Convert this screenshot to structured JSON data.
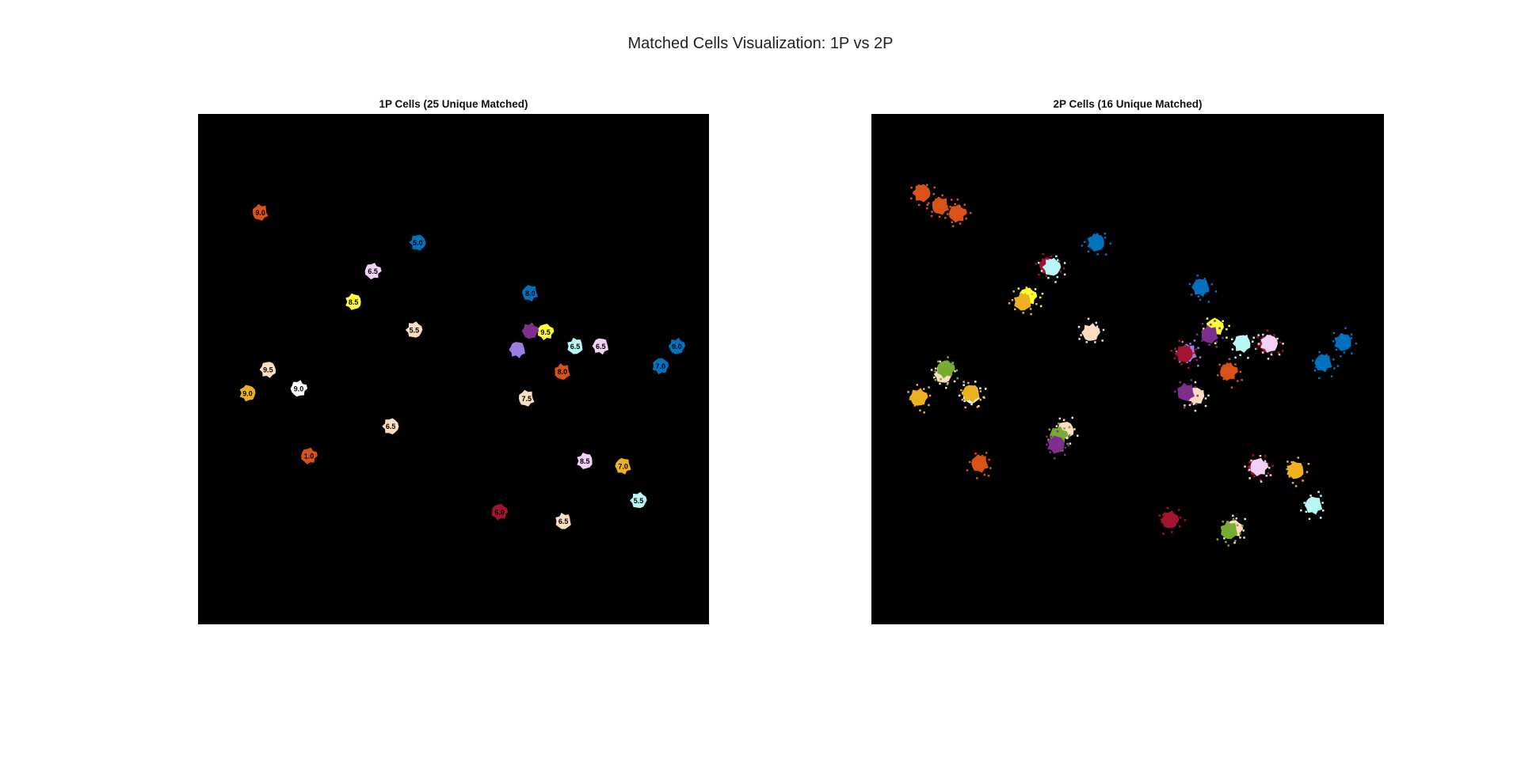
{
  "figure": {
    "title": "Matched Cells Visualization: 1P vs 2P"
  },
  "chart_data": [
    {
      "type": "scatter",
      "title": "1P Cells (25 Unique Matched)",
      "xlim": [
        0,
        1
      ],
      "ylim": [
        0,
        1
      ],
      "grid": false,
      "axes_visible": false,
      "background": "#000000",
      "cells": [
        {
          "x": 0.122,
          "y": 0.193,
          "label": "9.0",
          "color": "#D95319"
        },
        {
          "x": 0.43,
          "y": 0.252,
          "label": "5.0",
          "color": "#0072BD"
        },
        {
          "x": 0.342,
          "y": 0.308,
          "label": "6.5",
          "color": "#F3D0F5"
        },
        {
          "x": 0.304,
          "y": 0.368,
          "label": "8.5",
          "color": "#FFFF33"
        },
        {
          "x": 0.65,
          "y": 0.351,
          "label": "8.0",
          "color": "#0072BD"
        },
        {
          "x": 0.423,
          "y": 0.423,
          "label": "5.5",
          "color": "#FCDDC0"
        },
        {
          "x": 0.68,
          "y": 0.427,
          "label": "9.5",
          "color": "#FFFF33"
        },
        {
          "x": 0.738,
          "y": 0.455,
          "label": "6.5",
          "color": "#B8F7F5"
        },
        {
          "x": 0.788,
          "y": 0.455,
          "label": "6.5",
          "color": "#F3D0F5"
        },
        {
          "x": 0.937,
          "y": 0.455,
          "label": "9.0",
          "color": "#0072BD"
        },
        {
          "x": 0.905,
          "y": 0.494,
          "label": "7.0",
          "color": "#0072BD"
        },
        {
          "x": 0.713,
          "y": 0.505,
          "label": "8.0",
          "color": "#D95319"
        },
        {
          "x": 0.137,
          "y": 0.501,
          "label": "9.5",
          "color": "#FCDDC0"
        },
        {
          "x": 0.197,
          "y": 0.538,
          "label": "9.0",
          "color": "#FFFFFF"
        },
        {
          "x": 0.097,
          "y": 0.547,
          "label": "9.0",
          "color": "#EDB120"
        },
        {
          "x": 0.643,
          "y": 0.557,
          "label": "7.5",
          "color": "#FCDDC0"
        },
        {
          "x": 0.377,
          "y": 0.612,
          "label": "6.5",
          "color": "#FCDDC0"
        },
        {
          "x": 0.217,
          "y": 0.67,
          "label": "1.0",
          "color": "#D95319"
        },
        {
          "x": 0.757,
          "y": 0.68,
          "label": "8.5",
          "color": "#F3D0F5"
        },
        {
          "x": 0.832,
          "y": 0.69,
          "label": "7.0",
          "color": "#EDB120"
        },
        {
          "x": 0.862,
          "y": 0.757,
          "label": "5.5",
          "color": "#B8F7F5"
        },
        {
          "x": 0.59,
          "y": 0.78,
          "label": "6.0",
          "color": "#A2142F"
        },
        {
          "x": 0.715,
          "y": 0.798,
          "label": "6.5",
          "color": "#FCDDC0"
        },
        {
          "x": 0.625,
          "y": 0.462,
          "label": "",
          "color": "#9C7CE0"
        },
        {
          "x": 0.65,
          "y": 0.425,
          "label": "",
          "color": "#7E2F8E"
        }
      ]
    },
    {
      "type": "scatter",
      "title": "2P Cells (16 Unique Matched)",
      "xlim": [
        0,
        1
      ],
      "ylim": [
        0,
        1
      ],
      "grid": false,
      "axes_visible": false,
      "background": "#000000",
      "cells": [
        {
          "x": 0.135,
          "y": 0.18,
          "color": "#D95319"
        },
        {
          "x": 0.098,
          "y": 0.155,
          "color": "#D95319"
        },
        {
          "x": 0.168,
          "y": 0.195,
          "color": "#D95319"
        },
        {
          "x": 0.438,
          "y": 0.252,
          "color": "#0072BD"
        },
        {
          "x": 0.345,
          "y": 0.298,
          "color": "#A2142F"
        },
        {
          "x": 0.352,
          "y": 0.3,
          "color": "#B8F7F5"
        },
        {
          "x": 0.305,
          "y": 0.358,
          "color": "#FFFF33"
        },
        {
          "x": 0.295,
          "y": 0.368,
          "color": "#EDB120"
        },
        {
          "x": 0.643,
          "y": 0.34,
          "color": "#0072BD"
        },
        {
          "x": 0.428,
          "y": 0.428,
          "color": "#FCDDC0"
        },
        {
          "x": 0.67,
          "y": 0.418,
          "color": "#FFFF33"
        },
        {
          "x": 0.66,
          "y": 0.432,
          "color": "#7E2F8E"
        },
        {
          "x": 0.723,
          "y": 0.45,
          "color": "#B8F7F5"
        },
        {
          "x": 0.774,
          "y": 0.45,
          "color": "#A2142F"
        },
        {
          "x": 0.776,
          "y": 0.45,
          "color": "#F3D0F5"
        },
        {
          "x": 0.618,
          "y": 0.468,
          "color": "#9C7CE0"
        },
        {
          "x": 0.61,
          "y": 0.47,
          "color": "#A2142F"
        },
        {
          "x": 0.697,
          "y": 0.505,
          "color": "#D95319"
        },
        {
          "x": 0.92,
          "y": 0.447,
          "color": "#0072BD"
        },
        {
          "x": 0.882,
          "y": 0.488,
          "color": "#0072BD"
        },
        {
          "x": 0.14,
          "y": 0.51,
          "color": "#FCDDC0"
        },
        {
          "x": 0.145,
          "y": 0.5,
          "color": "#77AC30"
        },
        {
          "x": 0.195,
          "y": 0.55,
          "color": "#FFFFFF"
        },
        {
          "x": 0.194,
          "y": 0.548,
          "color": "#EDB120"
        },
        {
          "x": 0.092,
          "y": 0.555,
          "color": "#EDB120"
        },
        {
          "x": 0.632,
          "y": 0.553,
          "color": "#FCDDC0"
        },
        {
          "x": 0.614,
          "y": 0.545,
          "color": "#7E2F8E"
        },
        {
          "x": 0.378,
          "y": 0.62,
          "color": "#FCDDC0"
        },
        {
          "x": 0.365,
          "y": 0.63,
          "color": "#77AC30"
        },
        {
          "x": 0.36,
          "y": 0.648,
          "color": "#7E2F8E"
        },
        {
          "x": 0.212,
          "y": 0.685,
          "color": "#D95319"
        },
        {
          "x": 0.752,
          "y": 0.692,
          "color": "#A2142F"
        },
        {
          "x": 0.756,
          "y": 0.692,
          "color": "#F3D0F5"
        },
        {
          "x": 0.827,
          "y": 0.698,
          "color": "#EDB120"
        },
        {
          "x": 0.863,
          "y": 0.767,
          "color": "#B8F7F5"
        },
        {
          "x": 0.582,
          "y": 0.795,
          "color": "#A2142F"
        },
        {
          "x": 0.707,
          "y": 0.813,
          "color": "#FCDDC0"
        },
        {
          "x": 0.698,
          "y": 0.816,
          "color": "#77AC30"
        }
      ]
    }
  ]
}
